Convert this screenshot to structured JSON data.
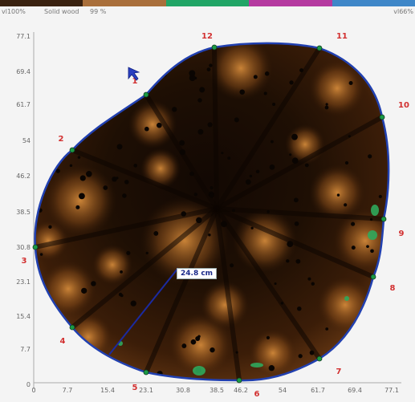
{
  "legend": {
    "left_label": "vl100%",
    "mid_label": "Solid wood",
    "pct_label": "99 %",
    "right_label": "vl66%",
    "colors": [
      "#3a2210",
      "#a96f3b",
      "#21a566",
      "#b53aa0",
      "#3f87c8"
    ]
  },
  "axes": {
    "x_ticks": [
      "0",
      "7.7",
      "15.4",
      "23.1",
      "30.8",
      "38.5",
      "46.2",
      "54",
      "61.7",
      "69.4",
      "77.1"
    ],
    "y_ticks": [
      "77.1",
      "69.4",
      "61.7",
      "54",
      "46.2",
      "38.5",
      "30.8",
      "23.1",
      "15.4",
      "7.7",
      "0"
    ]
  },
  "sensors": [
    "1",
    "2",
    "3",
    "4",
    "5",
    "6",
    "7",
    "8",
    "9",
    "10",
    "11",
    "12"
  ],
  "radius_label": "24.8 cm",
  "outline_color": "#2140b0"
}
